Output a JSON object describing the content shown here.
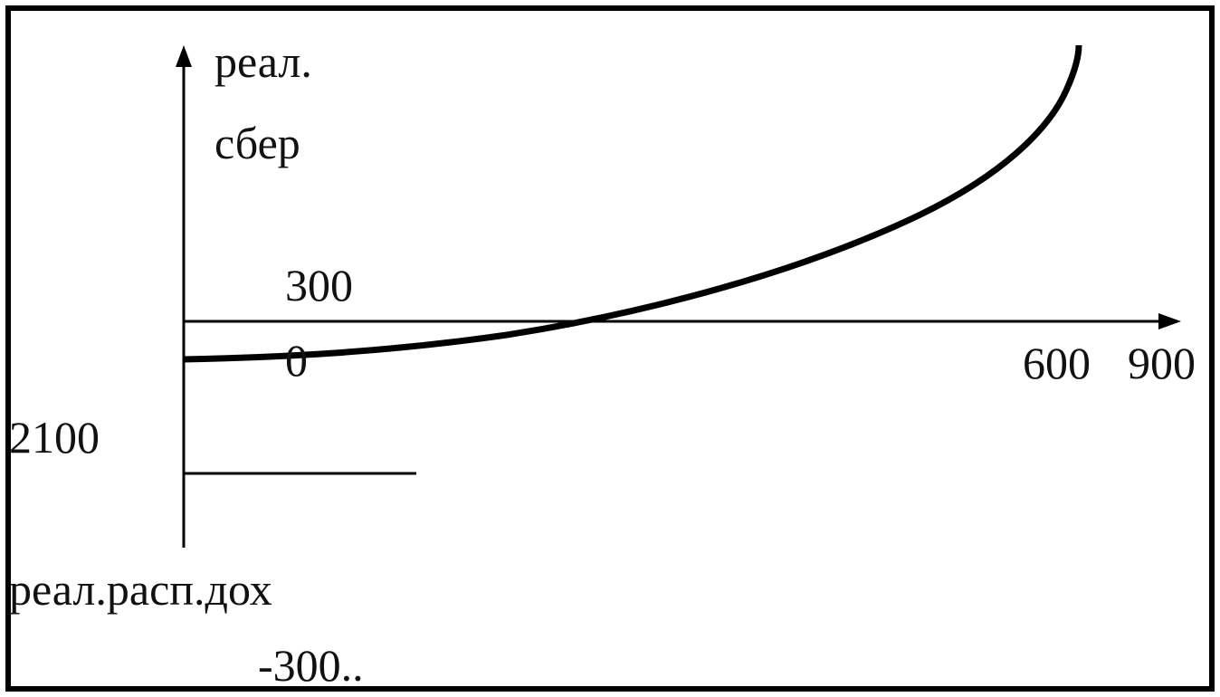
{
  "y_axis_label": [
    "реал.",
    "сбер"
  ],
  "x_axis_label": "реал.расп.дох",
  "labels": [
    "300",
    "0",
    "600",
    "900",
    "2100",
    "-300.."
  ]
}
